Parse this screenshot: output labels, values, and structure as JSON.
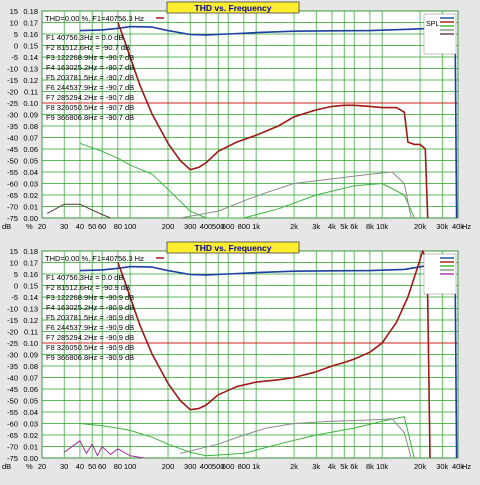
{
  "charts": [
    {
      "title": "THD vs. Frequency",
      "readout": "THD=0.00 %, F1=40756.3 Hz",
      "legend_label": "SPL",
      "unit_left": "dB",
      "unit_right": "%",
      "unit_x": "Hz",
      "x_ticks": [
        "20",
        "30",
        "40",
        "50",
        "60",
        "80",
        "100",
        "200",
        "300",
        "400",
        "500",
        "600",
        "800",
        "1k",
        "2k",
        "3k",
        "4k",
        "5k",
        "6k",
        "8k",
        "10k",
        "20k",
        "30k",
        "40k"
      ],
      "y_left_ticks": [
        "15",
        "10",
        "5",
        "0",
        "-5",
        "-10",
        "-15",
        "-20",
        "-25",
        "-30",
        "-35",
        "-40",
        "-45",
        "-50",
        "-55",
        "-60",
        "-65",
        "-70",
        "-75"
      ],
      "y_right_ticks": [
        "0.18",
        "0.17",
        "0.16",
        "0.15",
        "0.14",
        "0.13",
        "0.12",
        "0.11",
        "0.10",
        "0.09",
        "0.08",
        "0.07",
        "0.06",
        "0.05",
        "0.04",
        "0.03",
        "0.02",
        "0.01",
        "0.00"
      ],
      "harmonics": [
        "F1 40756.3Hz = 0.0 dB",
        "F2 81512.6Hz = -90.7 dB",
        "F3 122268.9Hz = -90.7 dB",
        "F4 163025.2Hz = -90.7 dB",
        "F5 203781.5Hz = -90.7 dB",
        "F6 244537.9Hz = -90.7 dB",
        "F7 285294.2Hz = -90.7 dB",
        "F8 326050.5Hz = -90.7 dB",
        "F9 366806.8Hz = -90.7 dB"
      ],
      "colors": {
        "spl": "#1a3fa0",
        "thd": "#a01818",
        "h2": "#3cb43c",
        "h3": "#8c8c8c",
        "h4": "#5a3c3c",
        "ref_line": "#cc2020",
        "grid": "#28a028",
        "bg": "#ffffff"
      },
      "chart_data": {
        "type": "line",
        "x_scale": "log",
        "xlim": [
          20,
          40000
        ],
        "ylim_left": [
          -75,
          15
        ],
        "ylim_right": [
          0,
          0.18
        ],
        "reference_line_pct": 0.1,
        "series": [
          {
            "key": "spl",
            "axis": "left",
            "points": [
              [
                40,
                6.5
              ],
              [
                60,
                6.8
              ],
              [
                80,
                7.5
              ],
              [
                100,
                8.2
              ],
              [
                150,
                8.0
              ],
              [
                200,
                6.5
              ],
              [
                300,
                4.8
              ],
              [
                400,
                4.6
              ],
              [
                600,
                5.0
              ],
              [
                1000,
                5.6
              ],
              [
                2000,
                6.2
              ],
              [
                4000,
                6.4
              ],
              [
                8000,
                6.5
              ],
              [
                15000,
                7.0
              ],
              [
                25000,
                7.5
              ],
              [
                30000,
                7.0
              ],
              [
                36000,
                6.0
              ],
              [
                38000,
                2.0
              ],
              [
                39000,
                -75
              ]
            ]
          },
          {
            "key": "thd",
            "axis": "right",
            "points": [
              [
                80,
                0.17
              ],
              [
                90,
                0.155
              ],
              [
                100,
                0.14
              ],
              [
                120,
                0.115
              ],
              [
                150,
                0.09
              ],
              [
                200,
                0.065
              ],
              [
                250,
                0.05
              ],
              [
                300,
                0.042
              ],
              [
                350,
                0.044
              ],
              [
                400,
                0.048
              ],
              [
                500,
                0.058
              ],
              [
                700,
                0.066
              ],
              [
                1000,
                0.072
              ],
              [
                1500,
                0.08
              ],
              [
                2000,
                0.088
              ],
              [
                3000,
                0.094
              ],
              [
                4000,
                0.097
              ],
              [
                5000,
                0.098
              ],
              [
                6000,
                0.098
              ],
              [
                8000,
                0.097
              ],
              [
                10000,
                0.096
              ],
              [
                13000,
                0.096
              ],
              [
                15000,
                0.092
              ],
              [
                16000,
                0.066
              ],
              [
                18000,
                0.064
              ],
              [
                20000,
                0.064
              ],
              [
                22000,
                0.06
              ],
              [
                23000,
                0
              ]
            ]
          },
          {
            "key": "h2",
            "axis": "right",
            "points": [
              [
                40,
                0.065
              ],
              [
                60,
                0.058
              ],
              [
                80,
                0.052
              ],
              [
                100,
                0.046
              ],
              [
                150,
                0.038
              ],
              [
                200,
                0.025
              ],
              [
                300,
                0.006
              ],
              [
                400,
                0
              ],
              [
                800,
                0
              ],
              [
                1500,
                0.008
              ],
              [
                3000,
                0.02
              ],
              [
                6000,
                0.028
              ],
              [
                10000,
                0.03
              ],
              [
                15000,
                0.02
              ],
              [
                18000,
                0
              ]
            ]
          },
          {
            "key": "h3",
            "axis": "right",
            "points": [
              [
                250,
                0
              ],
              [
                500,
                0.006
              ],
              [
                800,
                0.015
              ],
              [
                1200,
                0.022
              ],
              [
                2000,
                0.03
              ],
              [
                4000,
                0.034
              ],
              [
                8000,
                0.038
              ],
              [
                12000,
                0.04
              ],
              [
                15000,
                0.03
              ],
              [
                17000,
                0
              ]
            ]
          },
          {
            "key": "h4",
            "axis": "right",
            "points": [
              [
                22,
                0.004
              ],
              [
                30,
                0.012
              ],
              [
                40,
                0.012
              ],
              [
                50,
                0.007
              ],
              [
                60,
                0.003
              ],
              [
                70,
                0
              ]
            ]
          }
        ]
      }
    },
    {
      "title": "THD vs. Frequency",
      "readout": "THD=0.00 %, F1=40756.3 Hz",
      "legend_label": "",
      "unit_left": "dB",
      "unit_right": "%",
      "unit_x": "Hz",
      "x_ticks": [
        "20",
        "30",
        "40",
        "50",
        "60",
        "80",
        "100",
        "200",
        "300",
        "400",
        "500",
        "600",
        "800",
        "1k",
        "2k",
        "3k",
        "4k",
        "5k",
        "6k",
        "8k",
        "10k",
        "20k",
        "30k",
        "40k"
      ],
      "y_left_ticks": [
        "15",
        "10",
        "5",
        "0",
        "-5",
        "-10",
        "-15",
        "-20",
        "-25",
        "-30",
        "-35",
        "-40",
        "-45",
        "-50",
        "-55",
        "-60",
        "-65",
        "-70",
        "-75"
      ],
      "y_right_ticks": [
        "0.18",
        "0.17",
        "0.16",
        "0.15",
        "0.14",
        "0.13",
        "0.12",
        "0.11",
        "0.10",
        "0.09",
        "0.08",
        "0.07",
        "0.06",
        "0.05",
        "0.04",
        "0.03",
        "0.02",
        "0.01",
        "0.00"
      ],
      "harmonics": [
        "F1 40756.3Hz = 0.0 dB",
        "F2 81512.6Hz = -90.9 dB",
        "F3 122268.9Hz = -90.9 dB",
        "F4 163025.2Hz = -90.9 dB",
        "F5 203781.5Hz = -90.9 dB",
        "F6 244537.9Hz = -90.9 dB",
        "F7 285294.2Hz = -90.9 dB",
        "F8 326050.5Hz = -90.9 dB",
        "F9 366806.8Hz = -90.9 dB"
      ],
      "colors": {
        "spl": "#1a3fa0",
        "thd": "#a01818",
        "h2": "#3cb43c",
        "h3": "#8c8c8c",
        "h4": "#a030a0",
        "ref_line": "#cc2020",
        "grid": "#28a028",
        "bg": "#ffffff"
      },
      "chart_data": {
        "type": "line",
        "x_scale": "log",
        "xlim": [
          20,
          40000
        ],
        "ylim_left": [
          -75,
          15
        ],
        "ylim_right": [
          0,
          0.18
        ],
        "reference_line_pct": 0.1,
        "series": [
          {
            "key": "spl",
            "axis": "left",
            "points": [
              [
                40,
                6.5
              ],
              [
                60,
                6.8
              ],
              [
                80,
                7.5
              ],
              [
                100,
                8.2
              ],
              [
                150,
                8.0
              ],
              [
                200,
                6.5
              ],
              [
                300,
                4.8
              ],
              [
                400,
                4.6
              ],
              [
                600,
                5.0
              ],
              [
                1000,
                5.6
              ],
              [
                2000,
                6.2
              ],
              [
                4000,
                6.4
              ],
              [
                8000,
                6.5
              ],
              [
                15000,
                7.0
              ],
              [
                22000,
                8.5
              ],
              [
                30000,
                7.5
              ],
              [
                36000,
                6.0
              ],
              [
                38000,
                2.0
              ],
              [
                39000,
                -75
              ]
            ]
          },
          {
            "key": "thd",
            "axis": "right",
            "points": [
              [
                80,
                0.17
              ],
              [
                90,
                0.155
              ],
              [
                100,
                0.14
              ],
              [
                120,
                0.115
              ],
              [
                150,
                0.09
              ],
              [
                200,
                0.065
              ],
              [
                250,
                0.05
              ],
              [
                300,
                0.042
              ],
              [
                350,
                0.043
              ],
              [
                400,
                0.046
              ],
              [
                500,
                0.055
              ],
              [
                700,
                0.062
              ],
              [
                1000,
                0.066
              ],
              [
                1500,
                0.068
              ],
              [
                2000,
                0.07
              ],
              [
                3000,
                0.075
              ],
              [
                4000,
                0.08
              ],
              [
                5000,
                0.083
              ],
              [
                6000,
                0.086
              ],
              [
                8000,
                0.092
              ],
              [
                10000,
                0.1
              ],
              [
                13000,
                0.118
              ],
              [
                16000,
                0.14
              ],
              [
                19000,
                0.165
              ],
              [
                21000,
                0.18
              ],
              [
                22000,
                0.175
              ],
              [
                23000,
                0.14
              ],
              [
                24000,
                0
              ]
            ]
          },
          {
            "key": "h2",
            "axis": "right",
            "points": [
              [
                40,
                0.03
              ],
              [
                60,
                0.028
              ],
              [
                80,
                0.026
              ],
              [
                100,
                0.024
              ],
              [
                150,
                0.018
              ],
              [
                200,
                0.012
              ],
              [
                300,
                0.005
              ],
              [
                400,
                0.002
              ],
              [
                800,
                0.004
              ],
              [
                1500,
                0.012
              ],
              [
                3000,
                0.02
              ],
              [
                6000,
                0.026
              ],
              [
                10000,
                0.032
              ],
              [
                15000,
                0.036
              ],
              [
                18000,
                0
              ]
            ]
          },
          {
            "key": "h3",
            "axis": "right",
            "points": [
              [
                250,
                0.004
              ],
              [
                500,
                0.012
              ],
              [
                800,
                0.02
              ],
              [
                1200,
                0.026
              ],
              [
                2000,
                0.03
              ],
              [
                4000,
                0.032
              ],
              [
                8000,
                0.033
              ],
              [
                12000,
                0.034
              ],
              [
                15000,
                0.022
              ],
              [
                17000,
                0
              ]
            ]
          },
          {
            "key": "h4",
            "axis": "right",
            "points": [
              [
                30,
                0.005
              ],
              [
                40,
                0.015
              ],
              [
                45,
                0.004
              ],
              [
                50,
                0.012
              ],
              [
                55,
                0.002
              ],
              [
                60,
                0.01
              ],
              [
                70,
                0.003
              ],
              [
                80,
                0.008
              ],
              [
                100,
                0.002
              ],
              [
                130,
                0
              ]
            ]
          }
        ]
      }
    }
  ]
}
